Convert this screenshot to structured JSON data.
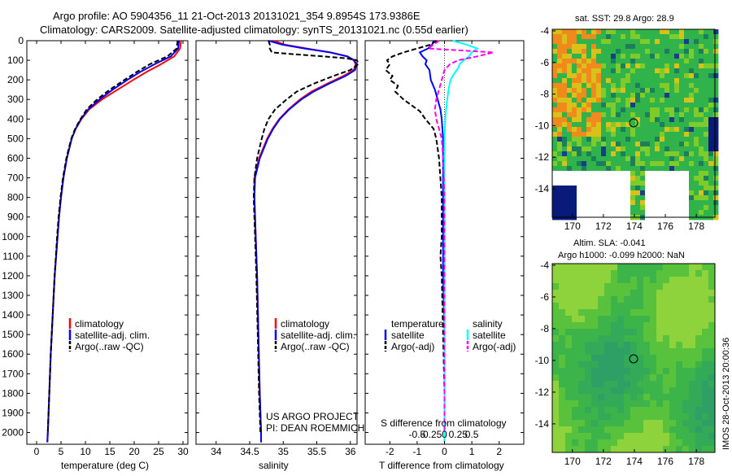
{
  "header": {
    "title_line1": "Argo profile: AO 5904356_11 21-Oct-2013 20131021_354 9.8954S 173.9386E",
    "title_line2": "Climatology: CARS2009. Satellite-adjusted climatology: synTS_20131021.nc (0.55d earlier)"
  },
  "colors": {
    "climatology": "#ff0000",
    "satellite": "#0000ff",
    "argo": "#000000",
    "sal_satellite": "#00ffff",
    "sal_argo": "#ff00ff"
  },
  "chart_data": [
    {
      "type": "line",
      "id": "temperature",
      "xlabel": "temperature (deg C)",
      "ylabel": "",
      "xlim": [
        -2,
        31
      ],
      "ylim": [
        2060,
        0
      ],
      "xticks": [
        "0",
        "5",
        "10",
        "15",
        "20",
        "25",
        "30"
      ],
      "yticks": [
        "0",
        "100",
        "200",
        "300",
        "400",
        "500",
        "600",
        "700",
        "800",
        "900",
        "1000",
        "1100",
        "1200",
        "1300",
        "1400",
        "1500",
        "1600",
        "1700",
        "1800",
        "1900",
        "2000"
      ],
      "legend": [
        "climatology",
        "satellite-adj. clim.",
        "Argo(..raw -QC)"
      ],
      "series": [
        {
          "name": "climatology",
          "y": [
            0,
            40,
            80,
            120,
            160,
            200,
            250,
            300,
            350,
            400,
            450,
            500,
            600,
            700,
            800,
            900,
            1000,
            1200,
            1400,
            1600,
            1800,
            2000,
            2050
          ],
          "x": [
            29.6,
            29.4,
            28.2,
            25.5,
            22.5,
            19.8,
            16.6,
            13.4,
            10.8,
            9.2,
            8.0,
            7.2,
            6.2,
            5.5,
            5.0,
            4.6,
            4.3,
            3.7,
            3.3,
            2.9,
            2.6,
            2.3,
            2.2
          ]
        },
        {
          "name": "satellite-adj. clim.",
          "y": [
            0,
            40,
            80,
            120,
            160,
            200,
            250,
            300,
            350,
            400,
            450,
            500,
            600,
            700,
            800,
            900,
            1000,
            1200,
            1400,
            1600,
            1800,
            2000,
            2050
          ],
          "x": [
            29.2,
            29.0,
            27.5,
            24.2,
            21.2,
            18.6,
            15.6,
            12.9,
            10.6,
            9.1,
            8.0,
            7.2,
            6.2,
            5.5,
            5.0,
            4.6,
            4.3,
            3.7,
            3.3,
            2.9,
            2.6,
            2.3,
            2.2
          ]
        },
        {
          "name": "Argo(..raw -QC)",
          "y": [
            0,
            40,
            80,
            120,
            160,
            200,
            250,
            300,
            350,
            400,
            450,
            500,
            600,
            700,
            800,
            900,
            1000,
            1200,
            1400,
            1600,
            1800,
            2000
          ],
          "x": [
            28.9,
            28.7,
            26.8,
            23.2,
            20.5,
            18.0,
            15.0,
            12.4,
            10.3,
            9.0,
            7.9,
            7.1,
            6.1,
            5.4,
            4.9,
            4.5,
            4.2,
            3.7,
            3.3,
            2.9,
            2.6,
            2.3
          ]
        }
      ]
    },
    {
      "type": "line",
      "id": "salinity",
      "xlabel": "salinity",
      "xlim": [
        33.7,
        36.1
      ],
      "ylim": [
        2060,
        0
      ],
      "xticks": [
        "34",
        "34.5",
        "35",
        "35.5",
        "36"
      ],
      "legend": [
        "climatology",
        "satellite-adj. clim.",
        "Argo(..raw -QC)"
      ],
      "annotation_line1": "US ARGO PROJECT",
      "annotation_line2": "PI: DEAN ROEMMICH",
      "series": [
        {
          "name": "climatology",
          "y": [
            0,
            20,
            40,
            60,
            80,
            100,
            120,
            150,
            180,
            220,
            260,
            300,
            350,
            400,
            450,
            500,
            600,
            700,
            800,
            1000,
            1200,
            1500,
            1800,
            2000,
            2050
          ],
          "x": [
            34.85,
            35.02,
            35.35,
            35.7,
            35.95,
            36.05,
            36.08,
            36.05,
            35.9,
            35.65,
            35.42,
            35.25,
            35.08,
            34.94,
            34.84,
            34.76,
            34.64,
            34.57,
            34.57,
            34.59,
            34.61,
            34.63,
            34.65,
            34.67,
            34.67
          ]
        },
        {
          "name": "satellite-adj. clim.",
          "y": [
            0,
            20,
            40,
            60,
            80,
            100,
            120,
            150,
            180,
            220,
            260,
            300,
            350,
            400,
            450,
            500,
            600,
            700,
            800,
            1000,
            1200,
            1500,
            1800,
            2000,
            2050
          ],
          "x": [
            34.78,
            34.98,
            35.32,
            35.7,
            35.96,
            36.06,
            36.09,
            36.07,
            35.93,
            35.68,
            35.45,
            35.27,
            35.09,
            34.95,
            34.85,
            34.77,
            34.65,
            34.58,
            34.57,
            34.59,
            34.61,
            34.63,
            34.65,
            34.67,
            34.67
          ]
        },
        {
          "name": "Argo(..raw -QC)",
          "y": [
            0,
            20,
            40,
            60,
            70,
            80,
            90,
            100,
            120,
            150,
            180,
            220,
            260,
            300,
            350,
            400,
            450,
            500,
            600,
            700,
            800,
            1000,
            1200,
            1500,
            1800,
            2000
          ],
          "x": [
            34.78,
            34.8,
            34.8,
            34.83,
            35.2,
            35.6,
            35.95,
            36.1,
            36.12,
            36.0,
            35.75,
            35.45,
            35.2,
            35.05,
            34.88,
            34.78,
            34.72,
            34.68,
            34.61,
            34.57,
            34.56,
            34.58,
            34.6,
            34.62,
            34.64,
            34.66
          ]
        }
      ]
    },
    {
      "type": "line",
      "id": "difference",
      "xlabel": "T difference from climatology",
      "xlabel_top": "S difference from climatology",
      "xlim": [
        -2.9,
        2.9
      ],
      "ylim": [
        2060,
        0
      ],
      "xticks": [
        "-2",
        "-1",
        "0",
        "1",
        "2"
      ],
      "xticks_top": [
        "-0.5",
        "-0.25",
        "0",
        "0.25",
        "0.5"
      ],
      "legend_title_temperature": "temperature",
      "legend_title_salinity": "salinity",
      "legend": [
        "satellite",
        "Argo(-adj)",
        "satellite",
        "Argo(-adj)"
      ],
      "series": [
        {
          "name": "temperature satellite",
          "y": [
            0,
            20,
            40,
            60,
            80,
            100,
            120,
            150,
            200,
            250,
            300,
            350,
            400,
            500,
            600,
            800,
            1000,
            1200,
            1500,
            2000,
            2050
          ],
          "x": [
            -0.4,
            -0.45,
            -0.6,
            -0.9,
            -0.8,
            -0.65,
            -0.7,
            -0.55,
            -0.5,
            -0.35,
            -0.25,
            -0.15,
            -0.1,
            -0.05,
            -0.05,
            -0.05,
            -0.05,
            -0.05,
            0,
            0,
            0
          ]
        },
        {
          "name": "temperature Argo(-adj)",
          "y": [
            0,
            20,
            40,
            60,
            80,
            100,
            120,
            150,
            180,
            200,
            230,
            260,
            300,
            330,
            360,
            400,
            450,
            500,
            600,
            800,
            1000,
            1100,
            1200,
            1500,
            1800,
            2000
          ],
          "x": [
            -0.3,
            -0.5,
            -1.0,
            -1.5,
            -1.9,
            -2.1,
            -2.0,
            -2.15,
            -1.9,
            -2.0,
            -1.7,
            -1.8,
            -1.5,
            -1.2,
            -0.9,
            -0.7,
            -0.4,
            -0.3,
            -0.2,
            -0.1,
            -0.1,
            -0.15,
            -0.1,
            -0.05,
            0,
            0
          ]
        },
        {
          "name": "salinity satellite",
          "y": [
            0,
            20,
            40,
            60,
            80,
            100,
            120,
            140,
            160,
            180,
            200,
            250,
            300,
            350,
            400,
            500,
            600,
            800,
            1000,
            1500,
            2000,
            2050
          ],
          "x": [
            0.3,
            0.8,
            1.2,
            1.0,
            0.9,
            0.7,
            0.55,
            0.5,
            0.4,
            0.3,
            0.22,
            0.15,
            0.1,
            0.06,
            0.03,
            0,
            0,
            0,
            0,
            0,
            0,
            0
          ]
        },
        {
          "name": "salinity Argo(-adj)",
          "y": [
            0,
            20,
            40,
            60,
            80,
            100,
            120,
            150,
            200,
            250,
            300,
            350,
            400,
            450,
            500,
            600,
            800,
            1000,
            1500,
            2000
          ],
          "x": [
            -0.2,
            -0.4,
            -0.6,
            1.8,
            1.2,
            0.5,
            0.2,
            0.0,
            -0.1,
            -0.2,
            -0.3,
            -0.35,
            -0.3,
            -0.2,
            -0.1,
            -0.05,
            0,
            0,
            0,
            0
          ]
        }
      ]
    }
  ],
  "sst_map": {
    "title": "sat. SST: 29.8 Argo: 28.9",
    "xticks": [
      "170",
      "172",
      "174",
      "176",
      "178"
    ],
    "yticks": [
      "-4",
      "-6",
      "-8",
      "-10",
      "-12",
      "-14"
    ]
  },
  "sla_map": {
    "title_line1": "Altim. SLA: -0.041",
    "title_line2": "Argo h1000: -0.099 h2000: NaN",
    "xticks": [
      "170",
      "172",
      "174",
      "176",
      "178"
    ],
    "yticks": [
      "-4",
      "-6",
      "-8",
      "-10",
      "-12",
      "-14"
    ],
    "credit": "IMOS 28-Oct-2013 20:00:36"
  }
}
